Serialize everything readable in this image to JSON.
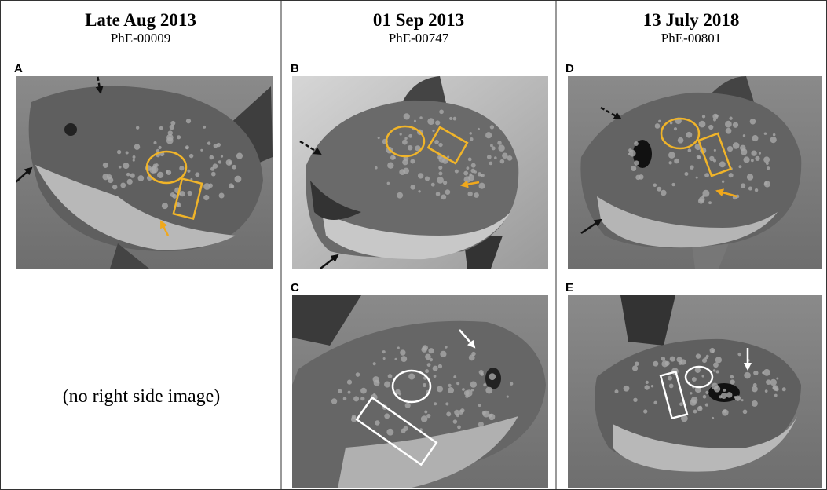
{
  "columns": [
    {
      "title": "Late Aug 2013",
      "subtitle": "PhE-00009",
      "panels": [
        {
          "label": "A"
        }
      ],
      "note": "(no right side image)"
    },
    {
      "title": "01 Sep 2013",
      "subtitle": "PhE-00747",
      "panels": [
        {
          "label": "B"
        },
        {
          "label": "C"
        }
      ]
    },
    {
      "title": "13 July 2018",
      "subtitle": "PhE-00801",
      "panels": [
        {
          "label": "D"
        },
        {
          "label": "E"
        }
      ]
    }
  ]
}
